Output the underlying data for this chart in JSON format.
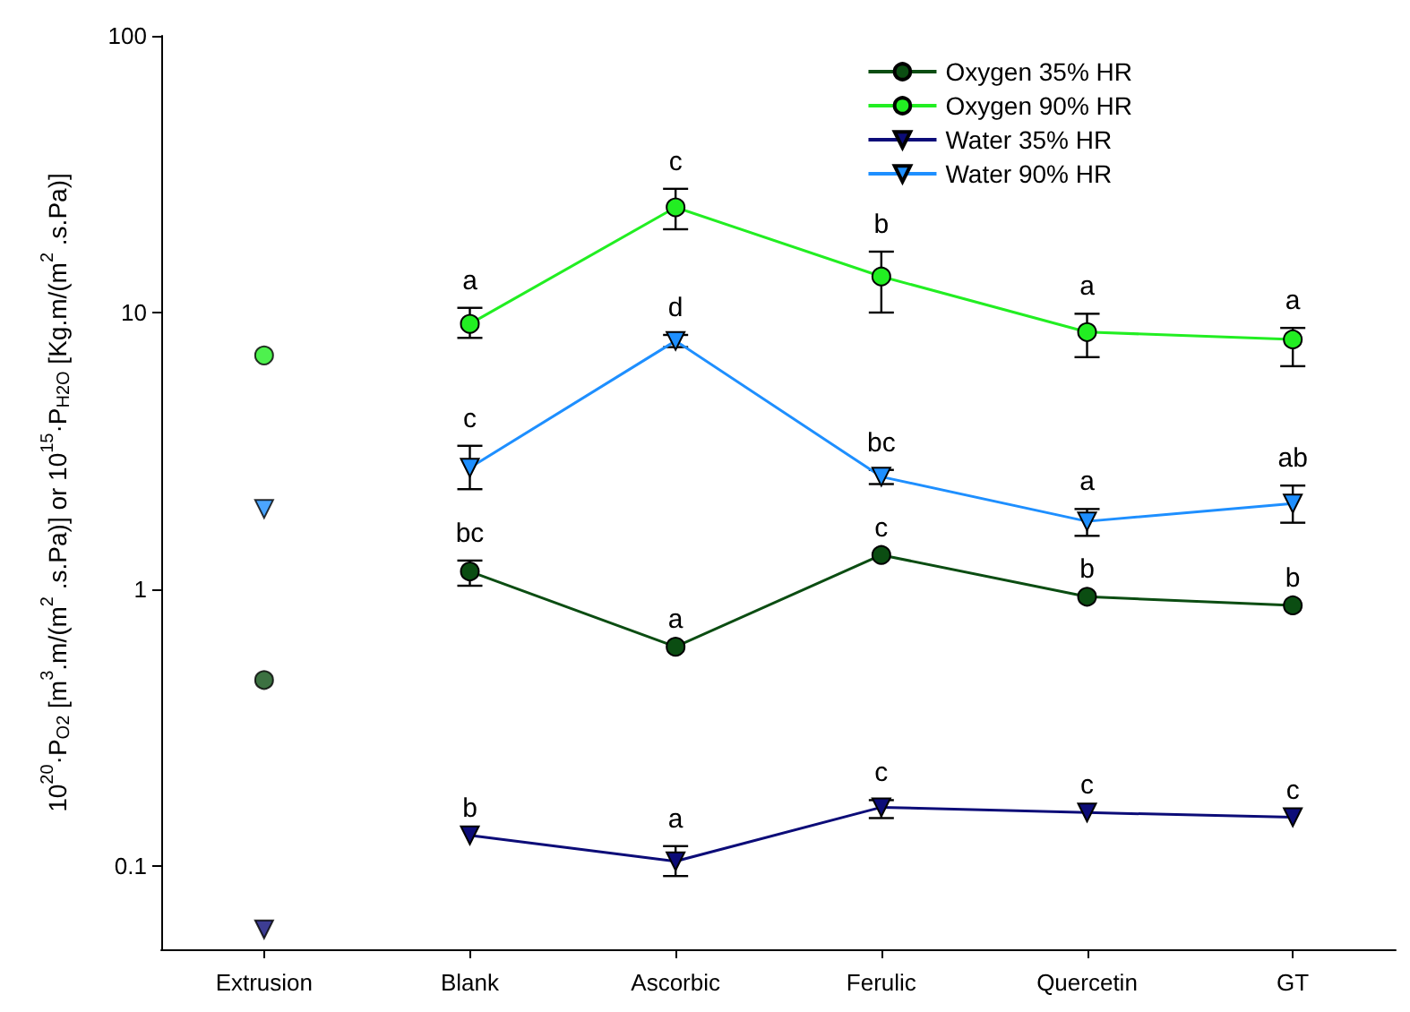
{
  "chart_data": {
    "type": "line",
    "ylabel": "10$^{20}$·P$_{O2}$ [m$^{3}$.m/(m$^{2}$ .s.Pa)] or 10$^{15}$·P$_{H2O}$ [Kg.m/(m$^{2}$ .s.Pa)]",
    "categories": [
      "Extrusion",
      "Blank",
      "Ascorbic",
      "Ferulic",
      "Quercetin",
      "GT"
    ],
    "log": "y",
    "ylim": [
      0.05,
      100
    ],
    "yticks": [
      0.1,
      1,
      10,
      100
    ],
    "grid": false,
    "legend": "top right",
    "series": [
      {
        "name": "Oxygen 35% HR",
        "color": "#0b4d12",
        "marker": "circle",
        "values": [
          null,
          1.16,
          0.62,
          1.33,
          0.94,
          0.875
        ],
        "errors": [
          null,
          [
            1.03,
            1.27
          ],
          null,
          null,
          null,
          null
        ]
      },
      {
        "name": "Oxygen 90% HR",
        "color": "#22ee22",
        "marker": "circle",
        "values": [
          null,
          9.1,
          24,
          13.5,
          8.5,
          8.0
        ],
        "errors": [
          null,
          [
            8.1,
            10.4
          ],
          [
            20,
            28
          ],
          [
            10,
            16.6
          ],
          [
            6.9,
            9.9
          ],
          [
            6.4,
            8.8
          ]
        ]
      },
      {
        "name": "Water 35% HR",
        "color": "#0c0c78",
        "marker": "triangle",
        "values": [
          null,
          0.129,
          0.104,
          0.163,
          0.156,
          0.15
        ],
        "errors": [
          null,
          null,
          [
            0.092,
            0.118
          ],
          [
            0.149,
            0.173
          ],
          null,
          null
        ]
      },
      {
        "name": "Water 90% HR",
        "color": "#1e8fff",
        "marker": "triangle",
        "values": [
          null,
          2.75,
          7.9,
          2.55,
          1.76,
          2.04
        ],
        "errors": [
          null,
          [
            2.3,
            3.3
          ],
          [
            7.5,
            8.3
          ],
          [
            2.4,
            2.7
          ],
          [
            1.56,
            1.95
          ],
          [
            1.74,
            2.37
          ]
        ]
      },
      {
        "type": "scatter",
        "color": "#0b4d12",
        "marker": "circle",
        "x": [
          "Extrusion"
        ],
        "values": [
          0.47
        ]
      },
      {
        "type": "scatter",
        "color": "#22ee22",
        "marker": "circle",
        "x": [
          "Extrusion"
        ],
        "values": [
          7.0
        ]
      },
      {
        "type": "scatter",
        "color": "#0c0c78",
        "marker": "triangle",
        "x": [
          "Extrusion"
        ],
        "values": [
          0.059
        ]
      },
      {
        "type": "scatter",
        "color": "#1e8fff",
        "marker": "triangle",
        "x": [
          "Extrusion"
        ],
        "values": [
          1.95
        ]
      }
    ],
    "annotations": [
      {
        "text": "a",
        "x": "Blank",
        "y": 9.1
      },
      {
        "text": "c",
        "x": "Ascorbic",
        "y": 24
      },
      {
        "text": "b",
        "x": "Ferulic",
        "y": 13.5
      },
      {
        "text": "a",
        "x": "Quercetin",
        "y": 8.5
      },
      {
        "text": "a",
        "x": "GT",
        "y": 8.0
      },
      {
        "text": "c",
        "x": "Blank",
        "y": 2.75
      },
      {
        "text": "d",
        "x": "Ascorbic",
        "y": 7.9
      },
      {
        "text": "bc",
        "x": "Ferulic",
        "y": 2.55
      },
      {
        "text": "a",
        "x": "Quercetin",
        "y": 1.76
      },
      {
        "text": "ab",
        "x": "GT",
        "y": 2.04
      },
      {
        "text": "bc",
        "x": "Blank",
        "y": 1.16
      },
      {
        "text": "a",
        "x": "Ascorbic",
        "y": 0.62
      },
      {
        "text": "c",
        "x": "Ferulic",
        "y": 1.33
      },
      {
        "text": "b",
        "x": "Quercetin",
        "y": 0.94
      },
      {
        "text": "b",
        "x": "GT",
        "y": 0.875
      },
      {
        "text": "b",
        "x": "Blank",
        "y": 0.129
      },
      {
        "text": "a",
        "x": "Ascorbic",
        "y": 0.104
      },
      {
        "text": "c",
        "x": "Ferulic",
        "y": 0.163
      },
      {
        "text": "c",
        "x": "Quercetin",
        "y": 0.156
      },
      {
        "text": "c",
        "x": "GT",
        "y": 0.15
      }
    ]
  }
}
